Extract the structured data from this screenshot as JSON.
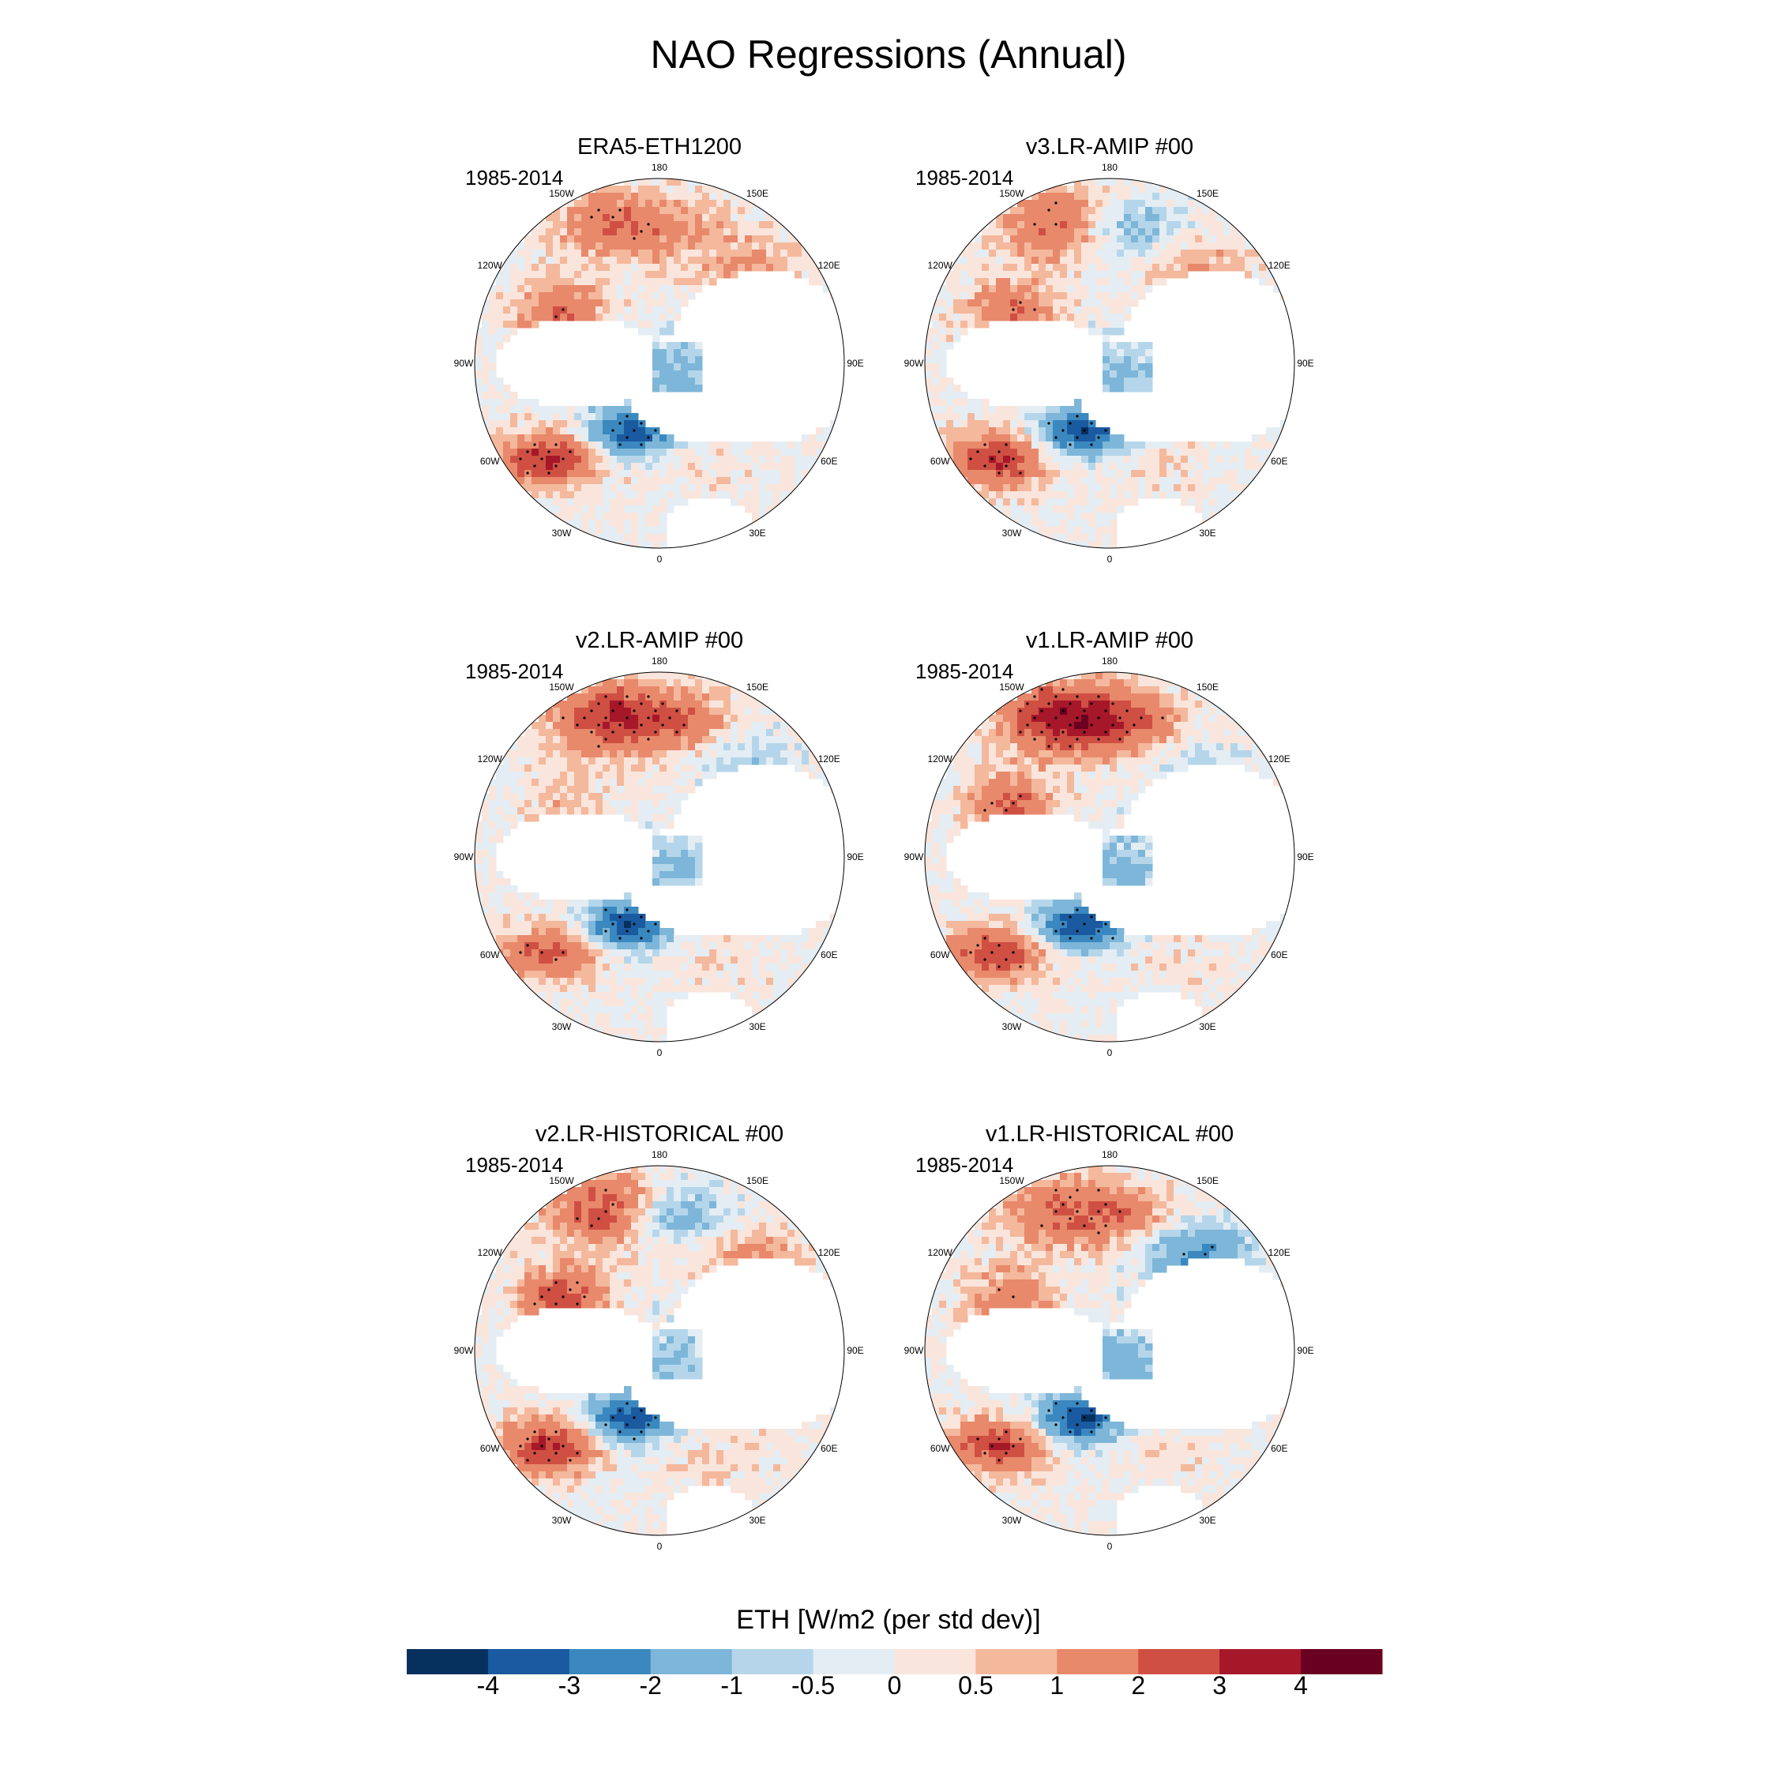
{
  "figure": {
    "title": "NAO Regressions (Annual)"
  },
  "longitude_labels": [
    "180",
    "150E",
    "120E",
    "90E",
    "60E",
    "30E",
    "0",
    "30W",
    "60W",
    "90W",
    "120W",
    "150W"
  ],
  "panels": [
    {
      "title": "ERA5-ETH1200",
      "period": "1985-2014",
      "pattern": [
        1.6,
        1.0,
        1.0,
        2.0,
        3.2,
        -3.6,
        -1.5,
        0.2
      ]
    },
    {
      "title": "v3.LR-AMIP  #00",
      "period": "1985-2014",
      "pattern": [
        2.2,
        -1.5,
        1.0,
        2.0,
        3.0,
        -3.8,
        -1.2,
        0.3
      ]
    },
    {
      "title": "v2.LR-AMIP  #00",
      "period": "1985-2014",
      "pattern": [
        2.6,
        1.8,
        -0.8,
        0.6,
        2.2,
        -3.8,
        -1.0,
        0.3
      ]
    },
    {
      "title": "v1.LR-AMIP  #00",
      "period": "1985-2014",
      "pattern": [
        3.0,
        2.4,
        -0.6,
        2.2,
        2.8,
        -3.9,
        -1.3,
        0.2
      ]
    },
    {
      "title": "v2.LR-HISTORICAL  #00",
      "period": "1985-2014",
      "pattern": [
        2.6,
        -1.8,
        1.2,
        2.6,
        3.2,
        -3.8,
        -1.2,
        0.4
      ]
    },
    {
      "title": "v1.LR-HISTORICAL  #00",
      "period": "1985-2014",
      "pattern": [
        1.8,
        1.4,
        -2.2,
        1.8,
        2.8,
        -3.9,
        -1.5,
        0.2
      ]
    }
  ],
  "colorbar": {
    "title": "ETH [W/m2 (per std dev)]",
    "labels": [
      "-4",
      "-3",
      "-2",
      "-1",
      "-0.5",
      "0",
      "0.5",
      "1",
      "2",
      "3",
      "4"
    ],
    "colors": [
      "#06305e",
      "#1a5aa0",
      "#3a88bf",
      "#7db6d8",
      "#b5d6ea",
      "#e4edf3",
      "#f9e5dc",
      "#f4b89c",
      "#e8896b",
      "#cf4f43",
      "#a6172a",
      "#6a0021"
    ]
  }
}
